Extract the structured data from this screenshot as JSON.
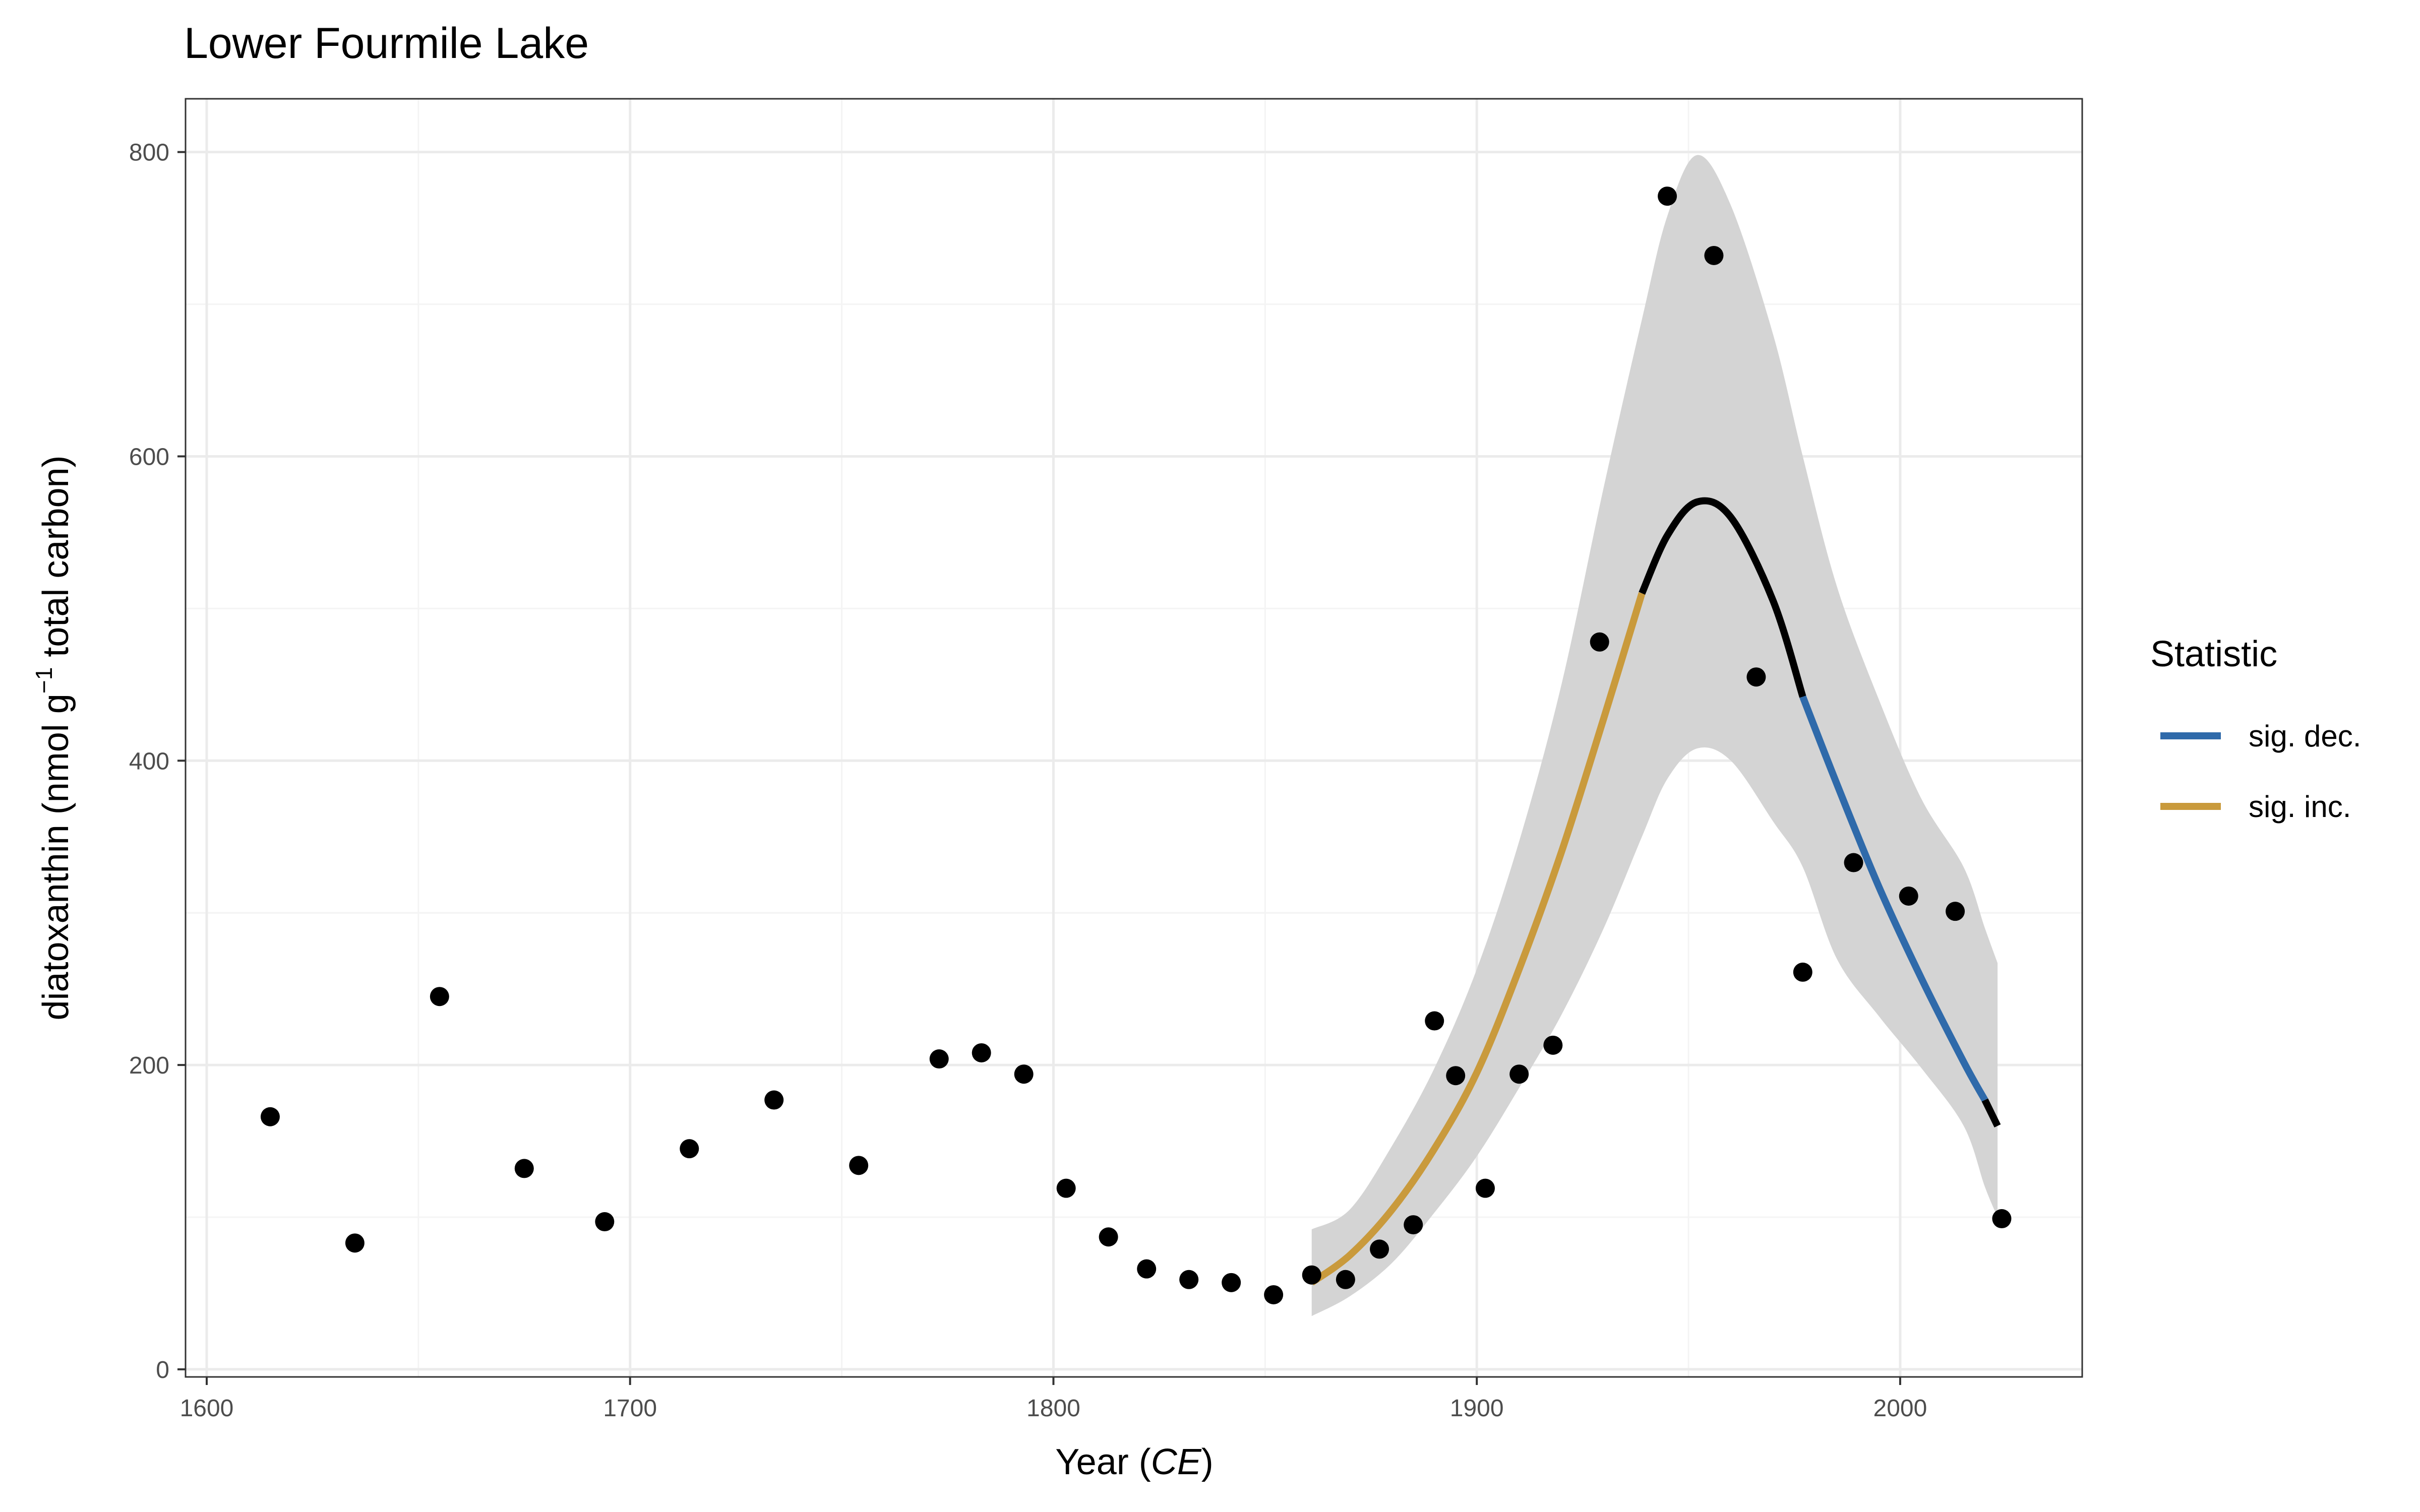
{
  "chart_data": {
    "type": "scatter",
    "title": "Lower Fourmile Lake",
    "xlabel": {
      "main": "Year (",
      "italic": "CE",
      "close": ")"
    },
    "ylabel": {
      "pre": "diatoxanthin (nmol g",
      "sup": "−1",
      "post": " total carbon)"
    },
    "xlim": [
      1595,
      2043
    ],
    "ylim": [
      -5,
      835
    ],
    "x_ticks": [
      1600,
      1700,
      1800,
      1900,
      2000
    ],
    "x_tick_labels": [
      "1600",
      "1700",
      "1800",
      "1900",
      "2000"
    ],
    "y_ticks": [
      0,
      200,
      400,
      600,
      800
    ],
    "y_tick_labels": [
      "0",
      "200",
      "400",
      "600",
      "800"
    ],
    "grid": true,
    "points": [
      {
        "x": 1615,
        "y": 166
      },
      {
        "x": 1635,
        "y": 83
      },
      {
        "x": 1655,
        "y": 245
      },
      {
        "x": 1675,
        "y": 132
      },
      {
        "x": 1694,
        "y": 97
      },
      {
        "x": 1714,
        "y": 145
      },
      {
        "x": 1734,
        "y": 177
      },
      {
        "x": 1754,
        "y": 134
      },
      {
        "x": 1773,
        "y": 204
      },
      {
        "x": 1783,
        "y": 208
      },
      {
        "x": 1793,
        "y": 194
      },
      {
        "x": 1803,
        "y": 119
      },
      {
        "x": 1813,
        "y": 87
      },
      {
        "x": 1822,
        "y": 66
      },
      {
        "x": 1832,
        "y": 59
      },
      {
        "x": 1842,
        "y": 57
      },
      {
        "x": 1852,
        "y": 49
      },
      {
        "x": 1861,
        "y": 62
      },
      {
        "x": 1869,
        "y": 59
      },
      {
        "x": 1877,
        "y": 79
      },
      {
        "x": 1885,
        "y": 95
      },
      {
        "x": 1890,
        "y": 229
      },
      {
        "x": 1895,
        "y": 193
      },
      {
        "x": 1902,
        "y": 119
      },
      {
        "x": 1910,
        "y": 194
      },
      {
        "x": 1918,
        "y": 213
      },
      {
        "x": 1929,
        "y": 478
      },
      {
        "x": 1945,
        "y": 771
      },
      {
        "x": 1956,
        "y": 732
      },
      {
        "x": 1966,
        "y": 455
      },
      {
        "x": 1977,
        "y": 261
      },
      {
        "x": 1989,
        "y": 333
      },
      {
        "x": 2002,
        "y": 311
      },
      {
        "x": 2013,
        "y": 301
      },
      {
        "x": 2024,
        "y": 99
      }
    ],
    "trend": {
      "x": [
        1861,
        1870,
        1880,
        1890,
        1900,
        1910,
        1920,
        1930,
        1939,
        1945,
        1952,
        1960,
        1970,
        1977,
        1985,
        1995,
        2005,
        2015,
        2020,
        2023
      ],
      "fit": [
        57,
        75,
        105,
        145,
        195,
        263,
        340,
        428,
        510,
        548,
        570,
        560,
        505,
        442,
        385,
        317,
        257,
        202,
        177,
        160
      ],
      "lower": [
        35,
        48,
        70,
        103,
        140,
        185,
        233,
        290,
        350,
        388,
        408,
        400,
        360,
        330,
        270,
        232,
        198,
        160,
        120,
        100
      ],
      "upper": [
        92,
        105,
        147,
        198,
        263,
        347,
        450,
        580,
        690,
        758,
        798,
        765,
        680,
        600,
        515,
        440,
        375,
        330,
        290,
        267
      ]
    },
    "segments": [
      {
        "from": 1861,
        "to": 1939,
        "status": "sig. inc."
      },
      {
        "from": 1939,
        "to": 1977,
        "status": "none"
      },
      {
        "from": 1977,
        "to": 2020,
        "status": "sig. dec."
      },
      {
        "from": 2020,
        "to": 2023,
        "status": "none"
      }
    ],
    "legend": {
      "title": "Statistic",
      "position": "right",
      "items": [
        {
          "label": "sig. dec.",
          "color": "#2f6aaa"
        },
        {
          "label": "sig. inc.",
          "color": "#c99a3c"
        }
      ]
    },
    "colors": {
      "points": "#000000",
      "ribbon": "#d4d4d4",
      "neutral_line": "#000000",
      "grid_major": "#ebebeb",
      "grid_minor": "#f4f4f4",
      "panel_border": "#333333"
    }
  }
}
